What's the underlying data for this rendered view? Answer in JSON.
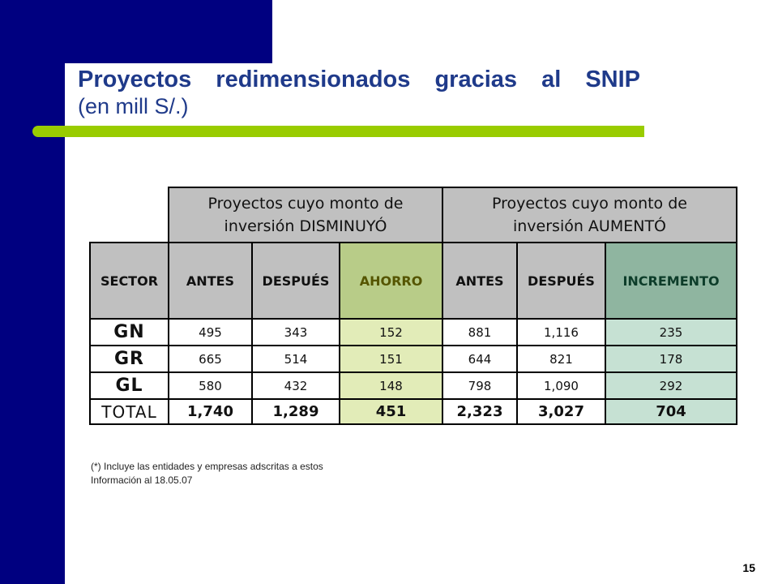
{
  "title": {
    "main": [
      "Proyectos",
      "redimensionados",
      "gracias",
      "al",
      "SNIP"
    ],
    "subtitle": "(en mill S/.)"
  },
  "table": {
    "group_headers": [
      {
        "line1": "Proyectos cuyo monto de",
        "line2": "inversión DISMINUYÓ"
      },
      {
        "line1": "Proyectos cuyo monto de",
        "line2": "inversión AUMENTÓ"
      }
    ],
    "columns": [
      "SECTOR",
      "ANTES",
      "DESPUÉS",
      "AHORRO",
      "ANTES",
      "DESPUÉS",
      "INCREMENTO"
    ],
    "rows": [
      {
        "sector": "GN",
        "antes1": "495",
        "despues1": "343",
        "ahorro": "152",
        "antes2": "881",
        "despues2": "1,116",
        "incremento": "235"
      },
      {
        "sector": "GR",
        "antes1": "665",
        "despues1": "514",
        "ahorro": "151",
        "antes2": "644",
        "despues2": "821",
        "incremento": "178"
      },
      {
        "sector": "GL",
        "antes1": "580",
        "despues1": "432",
        "ahorro": "148",
        "antes2": "798",
        "despues2": "1,090",
        "incremento": "292"
      }
    ],
    "total": {
      "sector": "TOTAL",
      "antes1": "1,740",
      "despues1": "1,289",
      "ahorro": "451",
      "antes2": "2,323",
      "despues2": "3,027",
      "incremento": "704"
    }
  },
  "notes": {
    "line1": "(*) Incluye las entidades y empresas adscritas a estos",
    "line2": "Información al 18.05.07"
  },
  "page_number": "15",
  "colors": {
    "navy": "#000080",
    "accent_green": "#99cc00",
    "title_blue": "#1f3a8a",
    "ahorro_header": "#b8cc88",
    "incremento_header": "#8fb5a0"
  }
}
